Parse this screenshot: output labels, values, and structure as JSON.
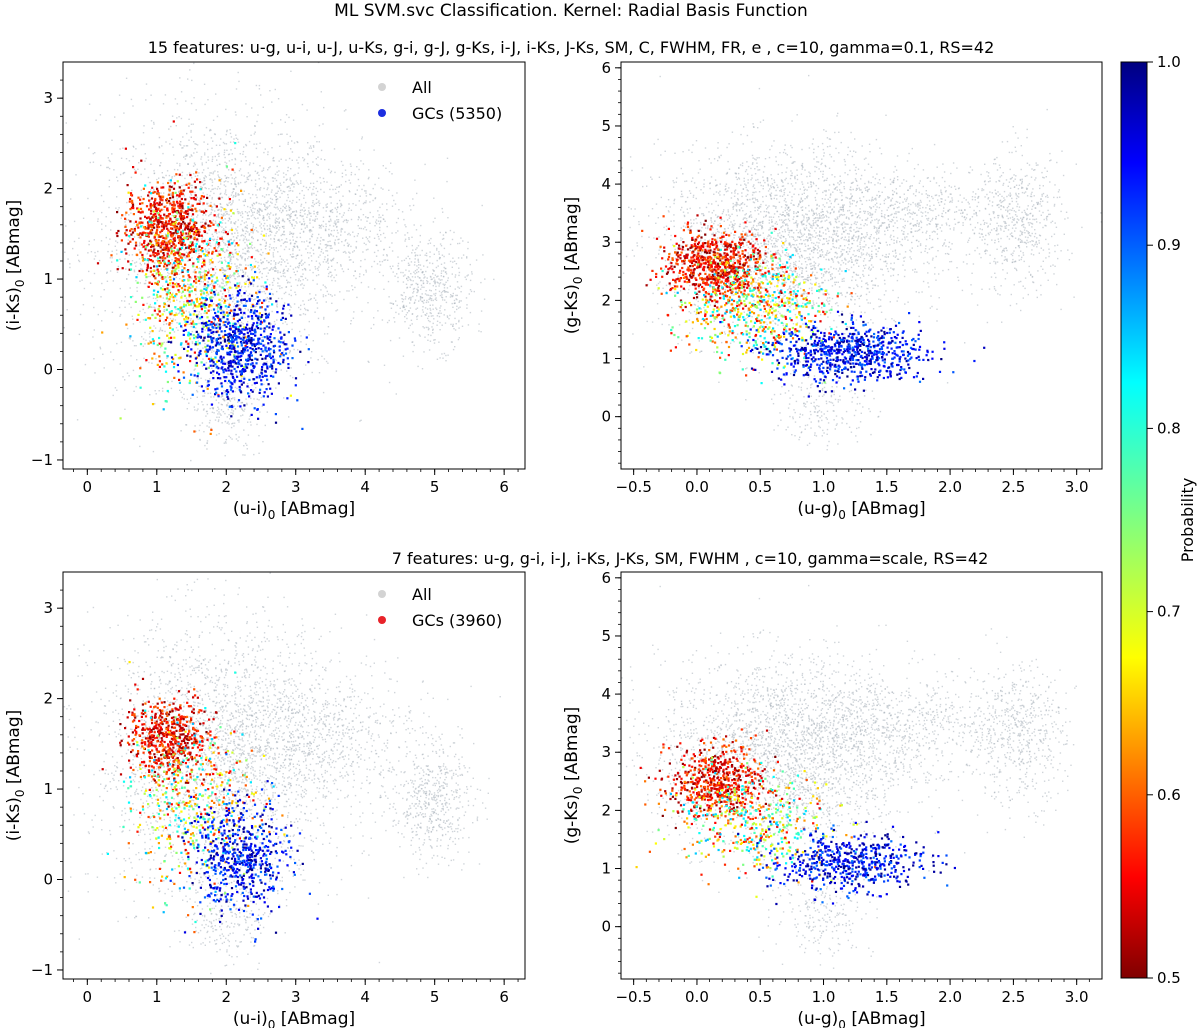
{
  "figure": {
    "suptitle": "ML SVM.svc Classification. Kernel: Radial Basis Function",
    "row1_title": "15 features: u-g, u-i, u-J, u-Ks, g-i, g-J, g-Ks, i-J, i-Ks, J-Ks, SM, C, FWHM, FR, e , c=10, gamma=0.1, RS=42",
    "row2_title": "7 features: u-g, g-i, i-J, i-Ks, J-Ks, SM, FWHM , c=10, gamma=scale, RS=42"
  },
  "colorbar": {
    "label": "Probability",
    "min": 0.5,
    "max": 1.0,
    "ticks": [
      "0.5",
      "0.6",
      "0.7",
      "0.8",
      "0.9",
      "1.0"
    ],
    "colormap": "jet_r"
  },
  "colors": {
    "all_points": "#a9b3bc",
    "legend_all": "#d3d3d3",
    "legend_gc_row1": "#1c2ee0",
    "legend_gc_row2": "#e8232a"
  },
  "chart_data": [
    {
      "type": "scatter",
      "panel": "top-left",
      "xlabel": "(u-i)0 [ABmag]",
      "ylabel": "(i-Ks)0 [ABmag]",
      "xlim": [
        -0.35,
        6.3
      ],
      "ylim": [
        -1.1,
        3.4
      ],
      "xticks": [
        "0",
        "1",
        "2",
        "3",
        "4",
        "5",
        "6"
      ],
      "yticks": [
        "-1",
        "0",
        "1",
        "2",
        "3"
      ],
      "legend": {
        "placement": "top-center",
        "entries": [
          "All",
          "GCs (5350)"
        ]
      },
      "series": [
        {
          "name": "All",
          "clusters": [
            {
              "cx": 1.9,
              "cy": 1.35,
              "sx": 0.9,
              "sy": 0.75,
              "n": 2600
            },
            {
              "cx": 3.3,
              "cy": 1.6,
              "sx": 0.8,
              "sy": 0.35,
              "n": 700
            },
            {
              "cx": 4.95,
              "cy": 0.85,
              "sx": 0.3,
              "sy": 0.3,
              "n": 500
            },
            {
              "cx": 2.0,
              "cy": -0.4,
              "sx": 0.25,
              "sy": 0.25,
              "n": 200
            }
          ]
        },
        {
          "name": "GCs (5350)",
          "clusters": [
            {
              "cx": 1.15,
              "cy": 1.55,
              "sx": 0.3,
              "sy": 0.25,
              "n": 700,
              "prob": [
                0.5,
                0.62
              ]
            },
            {
              "cx": 1.5,
              "cy": 0.85,
              "sx": 0.45,
              "sy": 0.5,
              "n": 600,
              "prob": [
                0.55,
                0.85
              ]
            },
            {
              "cx": 2.2,
              "cy": 0.25,
              "sx": 0.35,
              "sy": 0.3,
              "n": 700,
              "prob": [
                0.88,
                1.0
              ]
            }
          ]
        }
      ]
    },
    {
      "type": "scatter",
      "panel": "top-right",
      "xlabel": "(u-g)0 [ABmag]",
      "ylabel": "(g-Ks)0 [ABmag]",
      "xlim": [
        -0.6,
        3.2
      ],
      "ylim": [
        -0.9,
        6.1
      ],
      "xticks": [
        "-0.5",
        "0.0",
        "0.5",
        "1.0",
        "1.5",
        "2.0",
        "2.5",
        "3.0"
      ],
      "yticks": [
        "0",
        "1",
        "2",
        "3",
        "4",
        "5",
        "6"
      ],
      "series": [
        {
          "name": "All",
          "clusters": [
            {
              "cx": 0.7,
              "cy": 3.0,
              "sx": 0.5,
              "sy": 0.8,
              "n": 2600
            },
            {
              "cx": 1.7,
              "cy": 3.5,
              "sx": 0.45,
              "sy": 0.4,
              "n": 600
            },
            {
              "cx": 2.55,
              "cy": 3.3,
              "sx": 0.18,
              "sy": 0.6,
              "n": 500
            },
            {
              "cx": 1.0,
              "cy": 0.2,
              "sx": 0.2,
              "sy": 0.35,
              "n": 200
            }
          ]
        },
        {
          "name": "GCs",
          "clusters": [
            {
              "cx": 0.15,
              "cy": 2.6,
              "sx": 0.2,
              "sy": 0.3,
              "n": 700,
              "prob": [
                0.5,
                0.62
              ]
            },
            {
              "cx": 0.45,
              "cy": 1.9,
              "sx": 0.3,
              "sy": 0.45,
              "n": 600,
              "prob": [
                0.55,
                0.85
              ]
            },
            {
              "cx": 1.2,
              "cy": 1.1,
              "sx": 0.3,
              "sy": 0.25,
              "n": 700,
              "prob": [
                0.88,
                1.0
              ]
            }
          ]
        }
      ]
    },
    {
      "type": "scatter",
      "panel": "bottom-left",
      "xlabel": "(u-i)0 [ABmag]",
      "ylabel": "(i-Ks)0 [ABmag]",
      "xlim": [
        -0.35,
        6.3
      ],
      "ylim": [
        -1.1,
        3.4
      ],
      "xticks": [
        "0",
        "1",
        "2",
        "3",
        "4",
        "5",
        "6"
      ],
      "yticks": [
        "-1",
        "0",
        "1",
        "2",
        "3"
      ],
      "legend": {
        "placement": "top-center",
        "entries": [
          "All",
          "GCs (3960)"
        ]
      },
      "series": [
        {
          "name": "All",
          "clusters": [
            {
              "cx": 1.9,
              "cy": 1.35,
              "sx": 0.9,
              "sy": 0.75,
              "n": 2600
            },
            {
              "cx": 3.3,
              "cy": 1.6,
              "sx": 0.8,
              "sy": 0.35,
              "n": 700
            },
            {
              "cx": 4.95,
              "cy": 0.85,
              "sx": 0.3,
              "sy": 0.3,
              "n": 500
            },
            {
              "cx": 2.0,
              "cy": -0.4,
              "sx": 0.25,
              "sy": 0.25,
              "n": 200
            }
          ]
        },
        {
          "name": "GCs (3960)",
          "clusters": [
            {
              "cx": 1.15,
              "cy": 1.55,
              "sx": 0.28,
              "sy": 0.22,
              "n": 550,
              "prob": [
                0.5,
                0.62
              ]
            },
            {
              "cx": 1.5,
              "cy": 0.8,
              "sx": 0.45,
              "sy": 0.45,
              "n": 450,
              "prob": [
                0.55,
                0.85
              ]
            },
            {
              "cx": 2.2,
              "cy": 0.25,
              "sx": 0.35,
              "sy": 0.3,
              "n": 550,
              "prob": [
                0.88,
                1.0
              ]
            }
          ]
        }
      ]
    },
    {
      "type": "scatter",
      "panel": "bottom-right",
      "xlabel": "(u-g)0 [ABmag]",
      "ylabel": "(g-Ks)0 [ABmag]",
      "xlim": [
        -0.6,
        3.2
      ],
      "ylim": [
        -0.9,
        6.1
      ],
      "xticks": [
        "-0.5",
        "0.0",
        "0.5",
        "1.0",
        "1.5",
        "2.0",
        "2.5",
        "3.0"
      ],
      "yticks": [
        "0",
        "1",
        "2",
        "3",
        "4",
        "5",
        "6"
      ],
      "series": [
        {
          "name": "All",
          "clusters": [
            {
              "cx": 0.7,
              "cy": 3.0,
              "sx": 0.5,
              "sy": 0.8,
              "n": 2600
            },
            {
              "cx": 1.7,
              "cy": 3.5,
              "sx": 0.45,
              "sy": 0.4,
              "n": 600
            },
            {
              "cx": 2.55,
              "cy": 3.3,
              "sx": 0.18,
              "sy": 0.6,
              "n": 500
            },
            {
              "cx": 1.0,
              "cy": 0.2,
              "sx": 0.2,
              "sy": 0.35,
              "n": 200
            }
          ]
        },
        {
          "name": "GCs",
          "clusters": [
            {
              "cx": 0.15,
              "cy": 2.5,
              "sx": 0.2,
              "sy": 0.3,
              "n": 550,
              "prob": [
                0.5,
                0.62
              ]
            },
            {
              "cx": 0.45,
              "cy": 1.8,
              "sx": 0.3,
              "sy": 0.45,
              "n": 450,
              "prob": [
                0.55,
                0.85
              ]
            },
            {
              "cx": 1.2,
              "cy": 1.1,
              "sx": 0.3,
              "sy": 0.25,
              "n": 550,
              "prob": [
                0.88,
                1.0
              ]
            }
          ]
        }
      ]
    }
  ]
}
